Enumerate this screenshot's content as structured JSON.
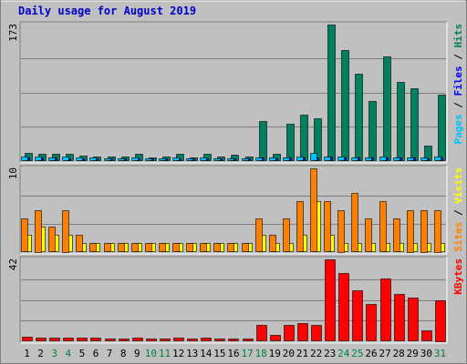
{
  "colors": {
    "background": "#c0c0c0",
    "plot_background": "#c0c0c0",
    "frame_dark": "#808080",
    "frame_light": "#ffffff",
    "gridline": "#808080",
    "title": "#0000cc",
    "hits": "#008060",
    "files": "#0000ff",
    "pages": "#00c0ff",
    "visits": "#ffff00",
    "sites": "#ff8000",
    "kbytes": "#ff0000",
    "weekday_label": "#000000",
    "weekend_label": "#008040"
  },
  "chart_data": {
    "title": "Daily usage for August 2019",
    "categories": [
      "1",
      "2",
      "3",
      "4",
      "5",
      "6",
      "7",
      "8",
      "9",
      "10",
      "11",
      "12",
      "13",
      "14",
      "15",
      "16",
      "17",
      "18",
      "19",
      "20",
      "21",
      "22",
      "23",
      "24",
      "25",
      "26",
      "27",
      "28",
      "29",
      "30",
      "31"
    ],
    "weekend_days": [
      "3",
      "4",
      "10",
      "11",
      "17",
      "18",
      "24",
      "25",
      "31"
    ],
    "panels": [
      {
        "name": "requests",
        "type": "bar",
        "ymax_label": "173",
        "ylim": [
          0,
          173
        ],
        "legend": [
          {
            "text": "Pages",
            "color": "#00c0ff"
          },
          {
            "text": " / ",
            "color": "#000000"
          },
          {
            "text": "Files",
            "color": "#0000ff"
          },
          {
            "text": " / ",
            "color": "#000000"
          },
          {
            "text": "Hits",
            "color": "#008060"
          }
        ],
        "series": [
          {
            "name": "Hits",
            "color": "#008060",
            "values": [
              9,
              8,
              8,
              8,
              6,
              5,
              5,
              5,
              8,
              4,
              5,
              8,
              4,
              8,
              5,
              7,
              5,
              50,
              8,
              47,
              58,
              53,
              173,
              140,
              110,
              76,
              132,
              100,
              92,
              19,
              84
            ]
          },
          {
            "name": "Files",
            "color": "#0000ff",
            "values": [
              3,
              3,
              3,
              2,
              2,
              2,
              2,
              2,
              2,
              1,
              1,
              2,
              1,
              2,
              1,
              2,
              1,
              3,
              2,
              3,
              4,
              3,
              5,
              4,
              4,
              3,
              4,
              4,
              3,
              2,
              4
            ]
          },
          {
            "name": "Pages",
            "color": "#00c0ff",
            "values": [
              5,
              5,
              4,
              5,
              3,
              3,
              2,
              2,
              4,
              2,
              2,
              3,
              2,
              3,
              2,
              2,
              2,
              4,
              3,
              4,
              5,
              9,
              5,
              5,
              4,
              4,
              5,
              4,
              4,
              3,
              5
            ]
          }
        ]
      },
      {
        "name": "visitors",
        "type": "bar",
        "ymax_label": "10",
        "ylim": [
          0,
          10
        ],
        "legend": [
          {
            "text": "Sites",
            "color": "#ff8000"
          },
          {
            "text": " / ",
            "color": "#000000"
          },
          {
            "text": "Visits",
            "color": "#ffff00"
          }
        ],
        "series": [
          {
            "name": "Visits",
            "color": "#ffff00",
            "values": [
              2,
              3,
              2,
              2,
              1,
              1,
              1,
              1,
              1,
              1,
              1,
              1,
              1,
              1,
              1,
              1,
              1,
              2,
              1,
              1,
              2,
              6,
              2,
              1,
              1,
              1,
              1,
              1,
              1,
              1,
              1
            ]
          },
          {
            "name": "Sites",
            "color": "#ff8000",
            "values": [
              4,
              5,
              3,
              5,
              2,
              1,
              1,
              1,
              1,
              1,
              1,
              1,
              1,
              1,
              1,
              1,
              1,
              4,
              2,
              4,
              6,
              10,
              6,
              5,
              7,
              4,
              6,
              4,
              5,
              5,
              5
            ]
          }
        ]
      },
      {
        "name": "kbytes",
        "type": "bar",
        "ymax_label": "42",
        "ylim": [
          0,
          42
        ],
        "legend": [
          {
            "text": "KBytes",
            "color": "#ff0000"
          }
        ],
        "series": [
          {
            "name": "KBytes",
            "color": "#ff0000",
            "values": [
              2,
              1.5,
              1.5,
              1.5,
              1.2,
              1.2,
              1,
              1,
              1.5,
              1,
              1,
              1.5,
              1,
              1.5,
              1,
              1,
              1,
              8,
              3,
              8,
              9,
              8,
              42,
              35,
              26,
              19,
              32,
              24,
              22,
              5,
              21
            ]
          }
        ]
      }
    ]
  }
}
